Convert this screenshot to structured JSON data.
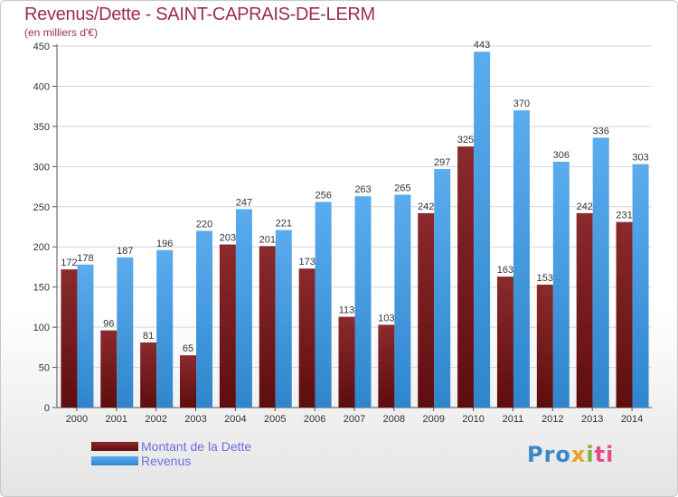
{
  "header": {
    "title": "Revenus/Dette - SAINT-CAPRAIS-DE-LERM",
    "subtitle": "(en milliers d'€)"
  },
  "legend": {
    "debt_label": "Montant de la Dette",
    "revenue_label": "Revenus"
  },
  "logo": {
    "text": "Proxiti"
  },
  "colors": {
    "debt": "#7a1a1c",
    "revenue": "#3d96dc",
    "title": "#9b2d4d",
    "legend_text": "#6b6fe0"
  },
  "chart_data": {
    "type": "bar",
    "title": "Revenus/Dette - SAINT-CAPRAIS-DE-LERM",
    "subtitle": "(en milliers d'€)",
    "categories": [
      "2000",
      "2001",
      "2002",
      "2003",
      "2004",
      "2005",
      "2006",
      "2007",
      "2008",
      "2009",
      "2010",
      "2011",
      "2012",
      "2013",
      "2014"
    ],
    "series": [
      {
        "name": "Montant de la Dette",
        "values": [
          172,
          96,
          81,
          65,
          203,
          201,
          173,
          113,
          103,
          242,
          325,
          163,
          153,
          242,
          231
        ]
      },
      {
        "name": "Revenus",
        "values": [
          178,
          187,
          196,
          220,
          247,
          221,
          256,
          263,
          265,
          297,
          443,
          370,
          306,
          336,
          303
        ]
      }
    ],
    "ylim": [
      0,
      450
    ],
    "yticks": [
      0,
      50,
      100,
      150,
      200,
      250,
      300,
      350,
      400,
      450
    ],
    "grid": true,
    "legend_position": "bottom-left"
  }
}
